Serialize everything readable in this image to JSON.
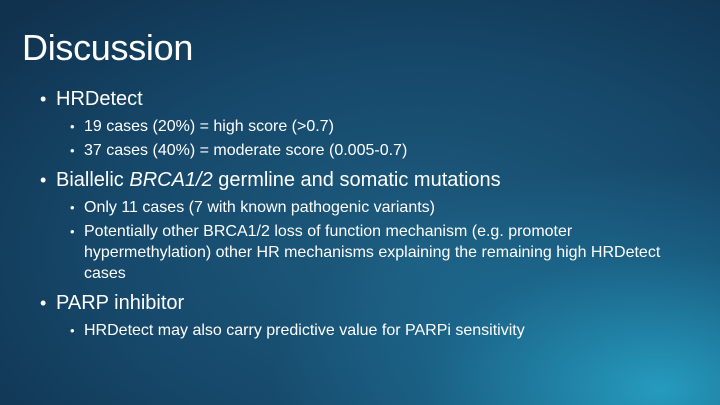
{
  "slide": {
    "title": "Discussion",
    "bullet_glyph": "•",
    "items": [
      {
        "label": "HRDetect",
        "subitems": [
          "19 cases (20%) = high score (>0.7)",
          "37 cases (40%) = moderate score (0.005-0.7)"
        ]
      },
      {
        "label_prefix": "Biallelic ",
        "label_italic": "BRCA1/2",
        "label_suffix": " germline and somatic mutations",
        "subitems": [
          "Only 11 cases (7 with known pathogenic variants)",
          "Potentially other BRCA1/2 loss of function mechanism (e.g. promoter hypermethylation) other HR mechanisms explaining the remaining high HRDetect cases"
        ]
      },
      {
        "label": "PARP inhibitor",
        "subitems": [
          "HRDetect may also carry predictive value for PARPi sensitivity"
        ]
      }
    ]
  },
  "colors": {
    "text": "#ffffff",
    "background_dark": "#10324f",
    "background_mid": "#1d5d80",
    "glow": "#28aacd"
  }
}
